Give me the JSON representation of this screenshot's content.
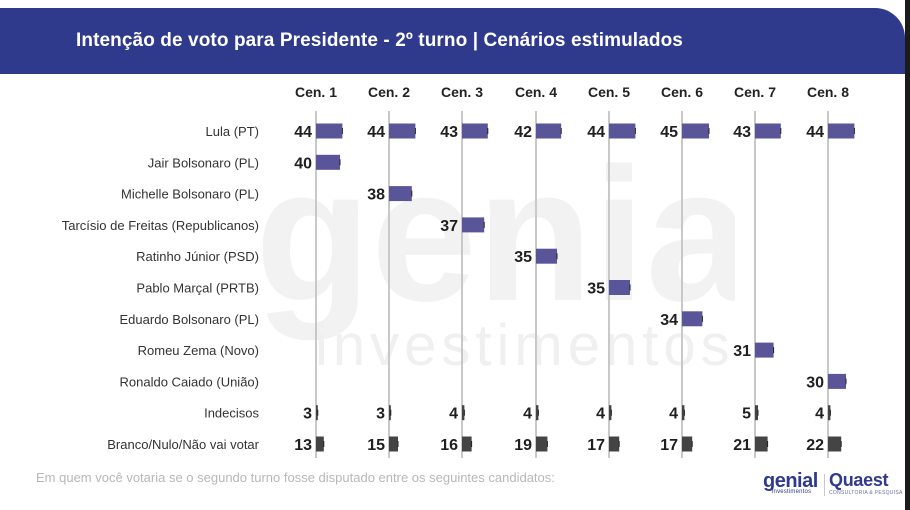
{
  "header": {
    "title": "Intenção de voto para Presidente - 2º turno | Cenários estimulados"
  },
  "watermark": {
    "line1": "genial",
    "line2": "investimentos"
  },
  "footnote": "Em quem você votaria se o segundo turno fosse disputado entre os seguintes candidatos:",
  "logos": {
    "genial": "genial",
    "genial_sub": "investimentos",
    "quaest": "Quaest",
    "quaest_sub": "CONSULTORIA & PESQUISA"
  },
  "colors": {
    "header_bg": "#2f3a8c",
    "candidate_bar": "#5a5598",
    "other_bar": "#444444",
    "gridline": "#c8c8c8"
  },
  "chart_data": {
    "type": "bar",
    "categories": [
      "Cen. 1",
      "Cen. 2",
      "Cen. 3",
      "Cen. 4",
      "Cen. 5",
      "Cen. 6",
      "Cen. 7",
      "Cen. 8"
    ],
    "rows": [
      {
        "label": "Lula (PT)",
        "kind": "candidate",
        "values": [
          44,
          44,
          43,
          42,
          44,
          45,
          43,
          44
        ]
      },
      {
        "label": "Jair Bolsonaro (PL)",
        "kind": "candidate",
        "values": [
          40,
          null,
          null,
          null,
          null,
          null,
          null,
          null
        ]
      },
      {
        "label": "Michelle Bolsonaro (PL)",
        "kind": "candidate",
        "values": [
          null,
          38,
          null,
          null,
          null,
          null,
          null,
          null
        ]
      },
      {
        "label": "Tarcísio de Freitas (Republicanos)",
        "kind": "candidate",
        "values": [
          null,
          null,
          37,
          null,
          null,
          null,
          null,
          null
        ]
      },
      {
        "label": "Ratinho Júnior (PSD)",
        "kind": "candidate",
        "values": [
          null,
          null,
          null,
          35,
          null,
          null,
          null,
          null
        ]
      },
      {
        "label": "Pablo Marçal (PRTB)",
        "kind": "candidate",
        "values": [
          null,
          null,
          null,
          null,
          35,
          null,
          null,
          null
        ]
      },
      {
        "label": "Eduardo Bolsonaro (PL)",
        "kind": "candidate",
        "values": [
          null,
          null,
          null,
          null,
          null,
          34,
          null,
          null
        ]
      },
      {
        "label": "Romeu Zema (Novo)",
        "kind": "candidate",
        "values": [
          null,
          null,
          null,
          null,
          null,
          null,
          31,
          null
        ]
      },
      {
        "label": "Ronaldo Caiado (União)",
        "kind": "candidate",
        "values": [
          null,
          null,
          null,
          null,
          null,
          null,
          null,
          30
        ]
      },
      {
        "label": "Indecisos",
        "kind": "other",
        "values": [
          3,
          3,
          4,
          4,
          4,
          4,
          5,
          4
        ]
      },
      {
        "label": "Branco/Nulo/Não vai votar",
        "kind": "other",
        "values": [
          13,
          15,
          16,
          19,
          17,
          17,
          21,
          22
        ]
      }
    ]
  }
}
